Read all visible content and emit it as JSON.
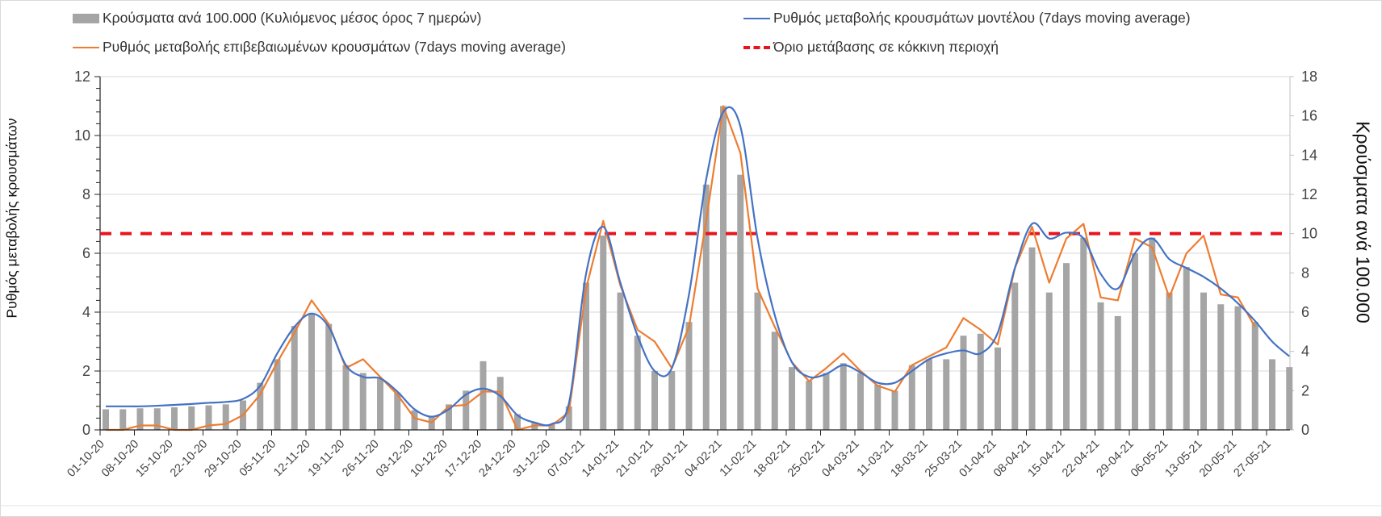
{
  "legend": {
    "bars": "Κρούσματα ανά 100.000 (Κυλιόμενος μέσος όρος 7 ημερών)",
    "model": "Ρυθμός μεταβολής κρουσμάτων μοντέλου (7days moving average)",
    "confirmed": "Ρυθμός μεταβολής επιβεβαιωμένων κρουσμάτων (7days moving average)",
    "threshold": "Όριο μετάβασης σε κόκκινη περιοχή"
  },
  "chart_data": {
    "type": "bar+line",
    "ylabel_left": "Ρυθμός μεταβολής κρουσμάτων",
    "ylabel_right": "Κρούσματα ανά 100.000",
    "ylim_left": [
      0,
      12
    ],
    "ylim_right": [
      0,
      18
    ],
    "yticks_left": [
      "0",
      "2",
      "4",
      "6",
      "8",
      "10",
      "12"
    ],
    "yticks_right": [
      "0",
      "2",
      "4",
      "6",
      "8",
      "10",
      "12",
      "14",
      "16",
      "18"
    ],
    "xticks": [
      "01-10-20",
      "08-10-20",
      "15-10-20",
      "22-10-20",
      "29-10-20",
      "05-11-20",
      "12-11-20",
      "19-11-20",
      "26-11-20",
      "03-12-20",
      "10-12-20",
      "17-12-20",
      "24-12-20",
      "31-12-20",
      "07-01-21",
      "14-01-21",
      "21-01-21",
      "28-01-21",
      "04-02-21",
      "11-02-21",
      "18-02-21",
      "25-02-21",
      "04-03-21",
      "11-03-21",
      "18-03-21",
      "25-03-21",
      "01-04-21",
      "08-04-21",
      "15-04-21",
      "22-04-21",
      "29-04-21",
      "06-05-21",
      "13-05-21",
      "20-05-21",
      "27-05-21"
    ],
    "x_step_weeks": 0.5,
    "threshold_right": 10,
    "colors": {
      "bars": "#a5a5a5",
      "model": "#4472c4",
      "confirmed": "#ed7d31",
      "threshold": "#e8141b"
    },
    "series": [
      {
        "name": "bars",
        "axis": "right",
        "values": [
          1.05,
          1.05,
          1.1,
          1.1,
          1.15,
          1.2,
          1.25,
          1.3,
          1.5,
          2.4,
          3.6,
          5.3,
          5.9,
          5.4,
          3.3,
          2.9,
          2.6,
          1.9,
          1.0,
          0.7,
          1.3,
          2.0,
          3.5,
          2.7,
          0.8,
          0.35,
          0.3,
          1.2,
          7.5,
          9.9,
          7.0,
          4.8,
          3.0,
          3.0,
          5.5,
          12.5,
          16.5,
          13.0,
          7.0,
          5.0,
          3.2,
          2.5,
          2.9,
          3.4,
          2.9,
          2.3,
          2.0,
          3.3,
          3.6,
          3.6,
          4.8,
          4.9,
          4.2,
          7.5,
          9.3,
          7.0,
          8.5,
          9.8,
          6.5,
          5.8,
          9.0,
          9.8,
          7.0,
          8.3,
          7.0,
          6.4,
          6.3,
          5.5,
          3.6,
          3.2
        ]
      },
      {
        "name": "model",
        "axis": "left",
        "values": [
          0.8,
          0.8,
          0.8,
          0.82,
          0.85,
          0.88,
          0.92,
          0.95,
          1.05,
          1.5,
          2.6,
          3.5,
          3.95,
          3.5,
          2.2,
          1.8,
          1.75,
          1.3,
          0.7,
          0.45,
          0.7,
          1.2,
          1.4,
          1.15,
          0.5,
          0.25,
          0.2,
          0.9,
          5.3,
          6.9,
          5.0,
          3.2,
          2.0,
          2.1,
          4.6,
          8.5,
          10.8,
          10.3,
          6.5,
          3.9,
          2.3,
          1.8,
          1.9,
          2.2,
          1.95,
          1.6,
          1.6,
          2.0,
          2.4,
          2.6,
          2.7,
          2.6,
          3.3,
          5.5,
          7.0,
          6.5,
          6.7,
          6.5,
          5.3,
          4.8,
          6.0,
          6.5,
          5.8,
          5.5,
          5.2,
          4.8,
          4.3,
          3.7,
          3.0,
          2.5
        ]
      },
      {
        "name": "confirmed",
        "axis": "left",
        "values": [
          0,
          0,
          0.15,
          0.15,
          0,
          0,
          0.15,
          0.2,
          0.5,
          1.2,
          2.3,
          3.3,
          4.4,
          3.6,
          2.1,
          2.4,
          1.8,
          1.2,
          0.4,
          0.25,
          0.8,
          0.85,
          1.3,
          1.3,
          0,
          0.15,
          0.15,
          0.6,
          4.8,
          7.1,
          4.9,
          3.4,
          3.0,
          2.1,
          3.5,
          7.1,
          11.0,
          9.4,
          4.8,
          3.5,
          2.3,
          1.65,
          2.1,
          2.6,
          2.0,
          1.5,
          1.3,
          2.2,
          2.5,
          2.8,
          3.8,
          3.4,
          2.9,
          5.5,
          6.9,
          5.0,
          6.5,
          7.0,
          4.5,
          4.4,
          6.5,
          6.2,
          4.5,
          6.0,
          6.6,
          4.6,
          4.5,
          3.5,
          null,
          null
        ]
      }
    ]
  }
}
